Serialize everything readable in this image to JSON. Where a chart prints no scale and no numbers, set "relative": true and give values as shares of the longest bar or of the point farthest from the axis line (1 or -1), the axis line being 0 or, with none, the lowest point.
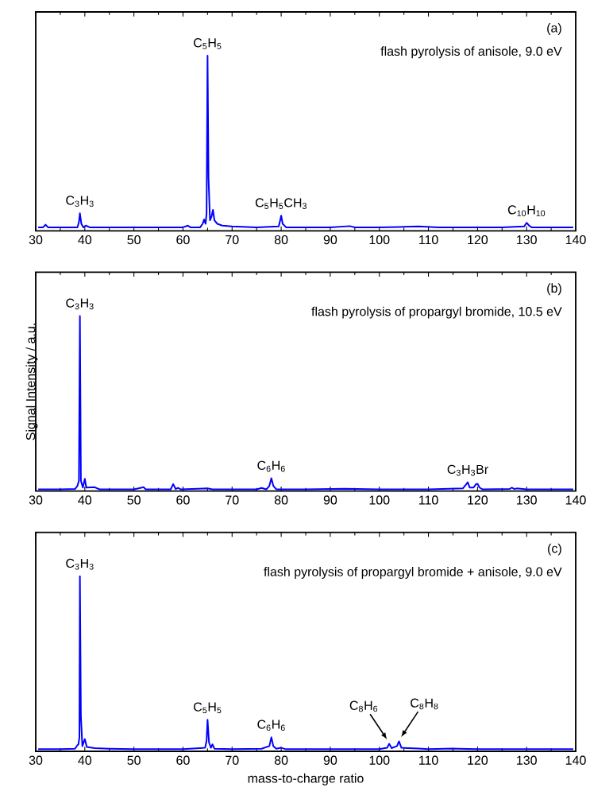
{
  "chart_data": [
    {
      "type": "line",
      "relative": true,
      "color": "#0000ff",
      "xlim": [
        30,
        140
      ],
      "xticks": [
        30,
        40,
        50,
        60,
        70,
        80,
        90,
        100,
        110,
        120,
        130,
        140
      ],
      "x": [
        30.5,
        31.5,
        32,
        32.5,
        35,
        38.5,
        38.8,
        39,
        39.3,
        39.7,
        40.2,
        41,
        45,
        50,
        55,
        60,
        61,
        61.5,
        63.5,
        64,
        64.3,
        64.6,
        64.8,
        65,
        65.2,
        65.5,
        65.8,
        66.1,
        66.4,
        67,
        68,
        70,
        75,
        79.5,
        79.8,
        80,
        80.3,
        81,
        85,
        90,
        94,
        95,
        100,
        104,
        108,
        112,
        120,
        125,
        129.5,
        130,
        130.5,
        131,
        135,
        139.5
      ],
      "values": [
        0.02,
        0.02,
        0.035,
        0.02,
        0.02,
        0.02,
        0.05,
        0.1,
        0.04,
        0.02,
        0.03,
        0.02,
        0.02,
        0.02,
        0.02,
        0.02,
        0.03,
        0.02,
        0.02,
        0.04,
        0.065,
        0.04,
        0.1,
        1,
        0.3,
        0.06,
        0.08,
        0.12,
        0.06,
        0.04,
        0.03,
        0.025,
        0.02,
        0.025,
        0.06,
        0.087,
        0.04,
        0.02,
        0.02,
        0.02,
        0.027,
        0.02,
        0.02,
        0.022,
        0.025,
        0.02,
        0.02,
        0.02,
        0.025,
        0.046,
        0.03,
        0.02,
        0.02,
        0.02
      ],
      "annotations": [
        "(a)",
        "flash pyrolysis of anisole, 9.0 eV",
        {
          "text": "C$_{3}$H$_{3}$",
          "x": 39,
          "y": 0.1
        },
        {
          "text": "C$_{5}$H$_{5}$",
          "x": 65,
          "y": 1
        },
        {
          "text": "C$_{5}$H$_{5}$CH$_{3}$",
          "x": 80,
          "y": 0.087
        },
        {
          "text": "C$_{10}$H$_{10}$",
          "x": 130,
          "y": 0.046
        }
      ]
    },
    {
      "type": "line",
      "relative": true,
      "color": "#0000ff",
      "xlim": [
        30,
        140
      ],
      "xticks": [
        30,
        40,
        50,
        60,
        70,
        80,
        90,
        100,
        110,
        120,
        130,
        140
      ],
      "ylabel": "Signal Intensity / a.u.",
      "x": [
        30.5,
        35,
        38,
        38.5,
        38.8,
        39,
        39.2,
        39.6,
        40,
        40.3,
        42,
        43,
        50,
        52,
        52.4,
        57.5,
        58,
        58.5,
        59,
        59.5,
        65,
        66,
        75,
        76,
        77,
        77.6,
        78,
        78.4,
        79,
        85,
        93,
        100,
        110,
        117,
        117.6,
        118,
        118.4,
        119.2,
        119.7,
        120,
        120.4,
        121,
        126.5,
        127,
        127.5,
        128,
        130,
        139.5
      ],
      "values": [
        0.01,
        0.01,
        0.012,
        0.03,
        0.06,
        1,
        0.06,
        0.02,
        0.07,
        0.02,
        0.022,
        0.01,
        0.01,
        0.022,
        0.01,
        0.01,
        0.04,
        0.012,
        0.018,
        0.01,
        0.015,
        0.01,
        0.01,
        0.018,
        0.01,
        0.03,
        0.073,
        0.03,
        0.01,
        0.01,
        0.013,
        0.01,
        0.01,
        0.015,
        0.035,
        0.05,
        0.02,
        0.02,
        0.04,
        0.042,
        0.02,
        0.01,
        0.012,
        0.02,
        0.012,
        0.015,
        0.01,
        0.01
      ],
      "annotations": [
        "(b)",
        "flash pyrolysis of propargyl bromide, 10.5 eV",
        {
          "text": "C$_{3}$H$_{3}$",
          "x": 39,
          "y": 1
        },
        {
          "text": "C$_{6}$H$_{6}$",
          "x": 78,
          "y": 0.073
        },
        {
          "text": "C$_{3}$H$_{3}$Br",
          "x": 118,
          "y": 0.05
        }
      ]
    },
    {
      "type": "line",
      "relative": true,
      "color": "#0000ff",
      "xlim": [
        30,
        140
      ],
      "xticks": [
        30,
        40,
        50,
        60,
        70,
        80,
        90,
        100,
        110,
        120,
        130,
        140
      ],
      "xlabel": "mass-to-charge ratio",
      "x": [
        30.5,
        35,
        38,
        38.5,
        38.7,
        38.9,
        39,
        39.2,
        39.5,
        40,
        40.4,
        42,
        45,
        50,
        60,
        64.5,
        64.8,
        65,
        65.3,
        65.7,
        66,
        66.4,
        70,
        76,
        77.6,
        78,
        78.4,
        79,
        80,
        81,
        90,
        100,
        101.6,
        102,
        102.5,
        103.6,
        104,
        104.5,
        108,
        110,
        115,
        116,
        120,
        130,
        139.5
      ],
      "values": [
        0.012,
        0.012,
        0.015,
        0.035,
        0.04,
        0.08,
        1,
        0.2,
        0.03,
        0.07,
        0.025,
        0.018,
        0.015,
        0.012,
        0.012,
        0.02,
        0.06,
        0.18,
        0.05,
        0.02,
        0.04,
        0.015,
        0.012,
        0.015,
        0.03,
        0.08,
        0.03,
        0.015,
        0.02,
        0.012,
        0.012,
        0.012,
        0.02,
        0.043,
        0.018,
        0.03,
        0.057,
        0.02,
        0.016,
        0.012,
        0.016,
        0.015,
        0.012,
        0.012,
        0.012
      ],
      "annotations": [
        "(c)",
        "flash pyrolysis of propargyl bromide + anisole, 9.0 eV",
        {
          "text": "C$_{3}$H$_{3}$",
          "x": 39,
          "y": 1
        },
        {
          "text": "C$_{5}$H$_{5}$",
          "x": 65,
          "y": 0.18
        },
        {
          "text": "C$_{6}$H$_{6}$",
          "x": 78,
          "y": 0.08
        },
        {
          "text": "C$_{8}$H$_{6}$",
          "x": 102,
          "y": 0.043
        },
        {
          "text": "C$_{8}$H$_{8}$",
          "x": 104,
          "y": 0.057
        }
      ]
    }
  ]
}
